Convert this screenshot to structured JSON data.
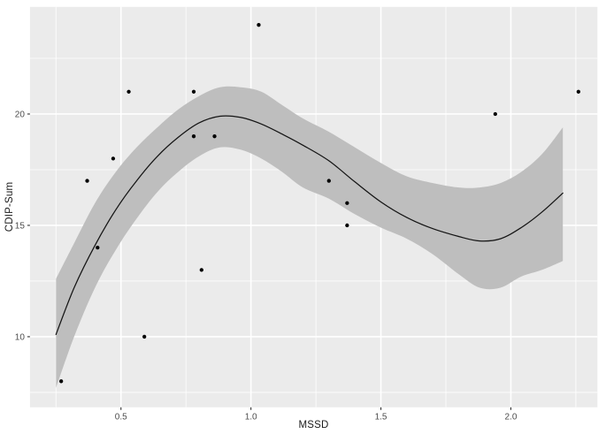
{
  "chart_data": {
    "type": "scatter",
    "title": "",
    "xlabel": "MSSD",
    "ylabel": "CDIP-Sum",
    "xlim": [
      0.15,
      2.333
    ],
    "ylim": [
      6.83,
      24.81
    ],
    "x_ticks": {
      "values": [
        0.5,
        1.0,
        1.5,
        2.0
      ],
      "labels": [
        "0.5",
        "1.0",
        "1.5",
        "2.0"
      ],
      "minor": [
        0.25,
        0.75,
        1.25,
        1.75,
        2.25
      ]
    },
    "y_ticks": {
      "values": [
        10,
        15,
        20
      ],
      "labels": [
        "10",
        "15",
        "20"
      ],
      "minor": [
        7.5,
        12.5,
        17.5,
        22.5
      ]
    },
    "grid": {
      "major": true,
      "minor": true
    },
    "legend": "none",
    "points": [
      [
        0.27,
        8
      ],
      [
        0.37,
        17
      ],
      [
        0.41,
        14
      ],
      [
        0.47,
        18
      ],
      [
        0.53,
        21
      ],
      [
        0.59,
        10
      ],
      [
        0.78,
        21
      ],
      [
        0.78,
        19
      ],
      [
        0.81,
        13
      ],
      [
        0.86,
        19
      ],
      [
        1.03,
        24
      ],
      [
        1.3,
        17
      ],
      [
        1.37,
        16
      ],
      [
        1.37,
        15
      ],
      [
        1.94,
        20
      ],
      [
        2.26,
        21
      ]
    ],
    "smooth": {
      "method": "loess-like fit with 95% confidence band",
      "x": [
        0.25,
        0.32,
        0.4,
        0.48,
        0.56,
        0.64,
        0.72,
        0.8,
        0.88,
        0.96,
        1.04,
        1.12,
        1.2,
        1.3,
        1.4,
        1.5,
        1.6,
        1.7,
        1.8,
        1.88,
        1.96,
        2.04,
        2.12,
        2.2
      ],
      "fit": [
        10.1,
        12.2,
        14.1,
        15.7,
        17.0,
        18.1,
        18.95,
        19.6,
        19.9,
        19.85,
        19.55,
        19.1,
        18.6,
        17.9,
        16.95,
        16.05,
        15.35,
        14.85,
        14.5,
        14.3,
        14.4,
        14.9,
        15.6,
        16.45
      ],
      "upper": [
        12.6,
        14.2,
        16.0,
        17.4,
        18.5,
        19.4,
        20.2,
        20.8,
        21.2,
        21.2,
        21.0,
        20.4,
        19.8,
        19.2,
        18.5,
        17.8,
        17.2,
        16.9,
        16.7,
        16.7,
        16.9,
        17.4,
        18.2,
        19.4
      ],
      "lower": [
        7.7,
        10.0,
        12.2,
        13.9,
        15.3,
        16.5,
        17.4,
        18.1,
        18.5,
        18.4,
        18.0,
        17.4,
        16.7,
        16.2,
        15.5,
        14.9,
        14.4,
        13.7,
        12.8,
        12.2,
        12.2,
        12.7,
        13.0,
        13.4
      ]
    },
    "colors": {
      "background": "#FFFFFF",
      "panel": "#EBEBEB",
      "grid": "#FFFFFF",
      "band": "#BEBEBE",
      "line": "#141414",
      "point": "#000000",
      "tick_label": "#4D4D4D",
      "axis_title": "#1A1A1A",
      "tick_mark": "#333333"
    }
  }
}
